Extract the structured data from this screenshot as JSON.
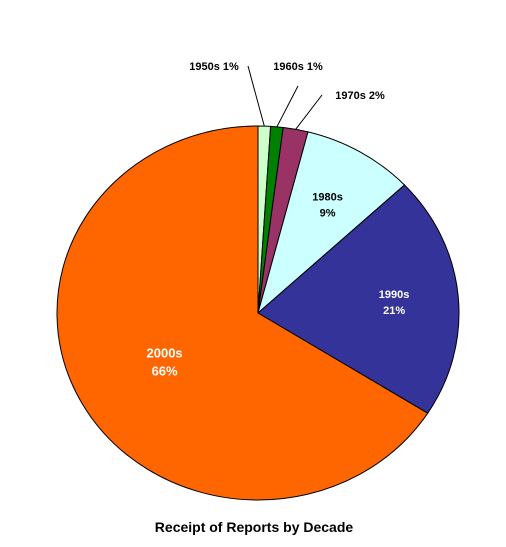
{
  "chart_data": {
    "type": "pie",
    "title": "Receipt of Reports by Decade",
    "slices": [
      {
        "category": "1950s",
        "value": 1,
        "percent_label": "1%",
        "color": "#CCFFCC",
        "label_position": "outside"
      },
      {
        "category": "1960s",
        "value": 1,
        "percent_label": "1%",
        "color": "#008000",
        "label_position": "outside"
      },
      {
        "category": "1970s",
        "value": 2,
        "percent_label": "2%",
        "color": "#993366",
        "label_position": "outside"
      },
      {
        "category": "1980s",
        "value": 9,
        "percent_label": "9%",
        "color": "#CCFFFF",
        "label_position": "inside"
      },
      {
        "category": "1990s",
        "value": 21,
        "percent_label": "21%",
        "color": "#333399",
        "label_position": "inside"
      },
      {
        "category": "2000s",
        "value": 66,
        "percent_label": "66%",
        "color": "#FF6600",
        "label_position": "inside"
      }
    ],
    "start": "12 o'clock",
    "direction": "clockwise",
    "legend": "none"
  }
}
